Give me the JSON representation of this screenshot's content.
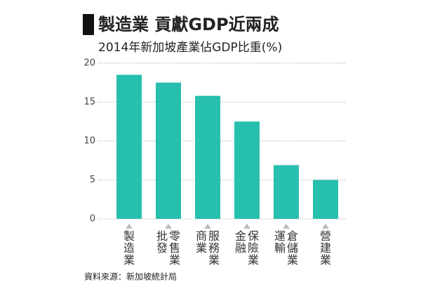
{
  "chart_data": {
    "type": "bar",
    "title": "製造業 貢獻GDP近兩成",
    "subtitle": "2014年新加坡產業佔GDP比重(%)",
    "categories": [
      "製造業",
      "批發零售業",
      "商業服務業",
      "金融保險業",
      "運輸倉儲業",
      "營建業"
    ],
    "values": [
      18.5,
      17.5,
      15.8,
      12.5,
      6.9,
      5.0
    ],
    "color": "#27bfad",
    "ylim": [
      0,
      20
    ],
    "yticks": [
      0,
      5,
      10,
      15,
      20
    ],
    "grid": true,
    "source": "資料來源：新加坡統計局"
  }
}
